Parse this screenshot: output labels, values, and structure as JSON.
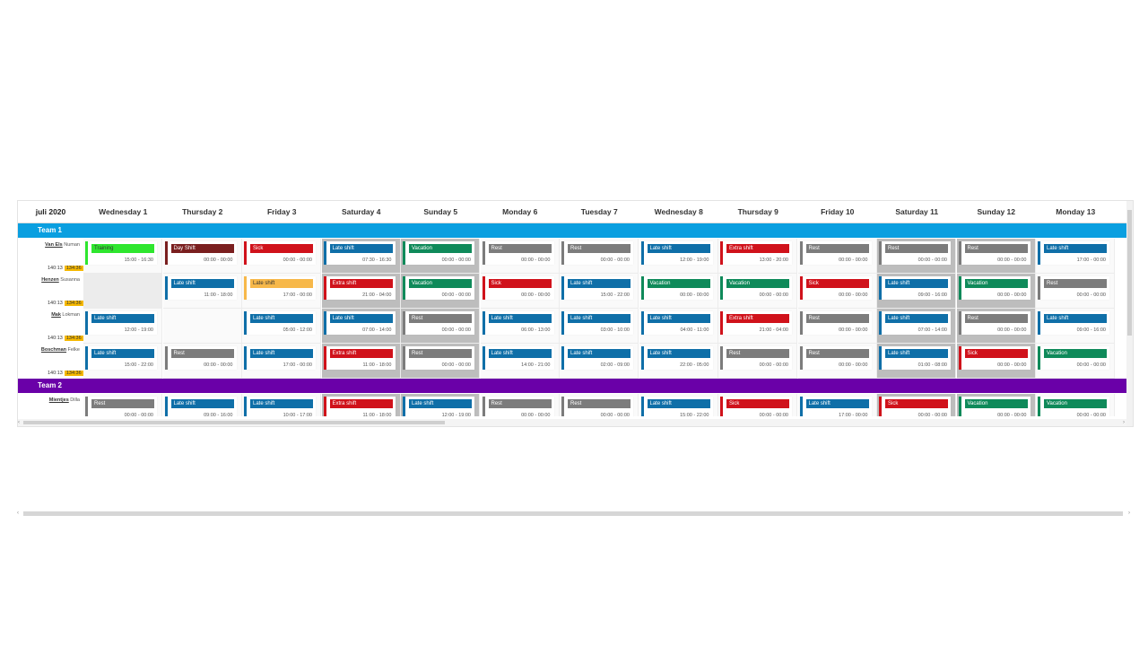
{
  "scheduler": {
    "month_label": "juli 2020",
    "days": [
      "Wednesday 1",
      "Thursday 2",
      "Friday 3",
      "Saturday 4",
      "Sunday 5",
      "Monday 6",
      "Tuesday 7",
      "Wednesday 8",
      "Thursday 9",
      "Friday 10",
      "Saturday 11",
      "Sunday 12",
      "Monday 13"
    ],
    "weekend_columns": [
      3,
      4,
      10,
      11
    ],
    "colors": {
      "training": "#2ee62e",
      "day_shift": "#7a1f1f",
      "sick": "#d0121b",
      "late_shift": "#0f6fa8",
      "vacation": "#0f8a5a",
      "rest": "#7c7c7c",
      "extra_shift": "#d0121b",
      "late_shift_orange": "#f7b84a",
      "team1": "#0a9fe0",
      "team2": "#6a00a8"
    }
  },
  "teams": [
    {
      "name": "Team 1",
      "members": [
        {
          "last_name": "Van Els",
          "first_name": "Numan",
          "planned": "140:13",
          "actual": "134:36",
          "events": [
            {
              "label": "Training",
              "time": "15:00 - 16:30",
              "color": "training"
            },
            {
              "label": "Day Shift",
              "time": "00:00 - 00:00",
              "color": "day_shift"
            },
            {
              "label": "Sick",
              "time": "00:00 - 00:00",
              "color": "sick"
            },
            {
              "label": "Late shift",
              "time": "07:30 - 16:30",
              "color": "late_shift"
            },
            {
              "label": "Vacation",
              "time": "00:00 - 00:00",
              "color": "vacation"
            },
            {
              "label": "Rest",
              "time": "00:00 - 00:00",
              "color": "rest"
            },
            {
              "label": "Rest",
              "time": "00:00 - 00:00",
              "color": "rest"
            },
            {
              "label": "Late shift",
              "time": "12:00 - 19:00",
              "color": "late_shift"
            },
            {
              "label": "Extra shift",
              "time": "13:00 - 20:00",
              "color": "extra_shift"
            },
            {
              "label": "Rest",
              "time": "00:00 - 00:00",
              "color": "rest"
            },
            {
              "label": "Rest",
              "time": "00:00 - 00:00",
              "color": "rest"
            },
            {
              "label": "Rest",
              "time": "00:00 - 00:00",
              "color": "rest"
            },
            {
              "label": "Late shift",
              "time": "17:00 - 00:00",
              "color": "late_shift"
            }
          ]
        },
        {
          "last_name": "Henzen",
          "first_name": "Susanna",
          "planned": "140:13",
          "actual": "134:36",
          "events": [
            null,
            {
              "label": "Late shift",
              "time": "11:00 - 18:00",
              "color": "late_shift"
            },
            {
              "label": "Late shift",
              "time": "17:00 - 00:00",
              "color": "late_shift_orange"
            },
            {
              "label": "Extra shift",
              "time": "21:00 - 04:00",
              "color": "extra_shift"
            },
            {
              "label": "Vacation",
              "time": "00:00 - 00:00",
              "color": "vacation"
            },
            {
              "label": "Sick",
              "time": "00:00 - 00:00",
              "color": "sick"
            },
            {
              "label": "Late shift",
              "time": "15:00 - 22:00",
              "color": "late_shift"
            },
            {
              "label": "Vacation",
              "time": "00:00 - 00:00",
              "color": "vacation"
            },
            {
              "label": "Vacation",
              "time": "00:00 - 00:00",
              "color": "vacation"
            },
            {
              "label": "Sick",
              "time": "00:00 - 00:00",
              "color": "sick"
            },
            {
              "label": "Late shift",
              "time": "09:00 - 16:00",
              "color": "late_shift"
            },
            {
              "label": "Vacation",
              "time": "00:00 - 00:00",
              "color": "vacation"
            },
            {
              "label": "Rest",
              "time": "00:00 - 00:00",
              "color": "rest"
            }
          ]
        },
        {
          "last_name": "Mak",
          "first_name": "Lokman",
          "planned": "140:13",
          "actual": "134:36",
          "events": [
            {
              "label": "Late shift",
              "time": "12:00 - 19:00",
              "color": "late_shift"
            },
            null,
            {
              "label": "Late shift",
              "time": "05:00 - 12:00",
              "color": "late_shift"
            },
            {
              "label": "Late shift",
              "time": "07:00 - 14:00",
              "color": "late_shift"
            },
            {
              "label": "Rest",
              "time": "00:00 - 00:00",
              "color": "rest"
            },
            {
              "label": "Late shift",
              "time": "06:00 - 13:00",
              "color": "late_shift"
            },
            {
              "label": "Late shift",
              "time": "03:00 - 10:00",
              "color": "late_shift"
            },
            {
              "label": "Late shift",
              "time": "04:00 - 11:00",
              "color": "late_shift"
            },
            {
              "label": "Extra shift",
              "time": "21:00 - 04:00",
              "color": "extra_shift"
            },
            {
              "label": "Rest",
              "time": "00:00 - 00:00",
              "color": "rest"
            },
            {
              "label": "Late shift",
              "time": "07:00 - 14:00",
              "color": "late_shift"
            },
            {
              "label": "Rest",
              "time": "00:00 - 00:00",
              "color": "rest"
            },
            {
              "label": "Late shift",
              "time": "09:00 - 16:00",
              "color": "late_shift"
            }
          ]
        },
        {
          "last_name": "Boschman",
          "first_name": "Felke",
          "planned": "140:13",
          "actual": "134:36",
          "events": [
            {
              "label": "Late shift",
              "time": "15:00 - 22:00",
              "color": "late_shift"
            },
            {
              "label": "Rest",
              "time": "00:00 - 00:00",
              "color": "rest"
            },
            {
              "label": "Late shift",
              "time": "17:00 - 00:00",
              "color": "late_shift"
            },
            {
              "label": "Extra shift",
              "time": "11:00 - 18:00",
              "color": "extra_shift"
            },
            {
              "label": "Rest",
              "time": "00:00 - 00:00",
              "color": "rest"
            },
            {
              "label": "Late shift",
              "time": "14:00 - 21:00",
              "color": "late_shift"
            },
            {
              "label": "Late shift",
              "time": "02:00 - 09:00",
              "color": "late_shift"
            },
            {
              "label": "Late shift",
              "time": "22:00 - 05:00",
              "color": "late_shift"
            },
            {
              "label": "Rest",
              "time": "00:00 - 00:00",
              "color": "rest"
            },
            {
              "label": "Rest",
              "time": "00:00 - 00:00",
              "color": "rest"
            },
            {
              "label": "Late shift",
              "time": "01:00 - 08:00",
              "color": "late_shift"
            },
            {
              "label": "Sick",
              "time": "00:00 - 00:00",
              "color": "sick"
            },
            {
              "label": "Vacation",
              "time": "00:00 - 00:00",
              "color": "vacation"
            }
          ]
        }
      ]
    },
    {
      "name": "Team 2",
      "members": [
        {
          "last_name": "Mientjes",
          "first_name": "Dilla",
          "planned": "",
          "actual": "",
          "events": [
            {
              "label": "Rest",
              "time": "00:00 - 00:00",
              "color": "rest"
            },
            {
              "label": "Late shift",
              "time": "09:00 - 16:00",
              "color": "late_shift"
            },
            {
              "label": "Late shift",
              "time": "10:00 - 17:00",
              "color": "late_shift"
            },
            {
              "label": "Extra shift",
              "time": "11:00 - 18:00",
              "color": "extra_shift"
            },
            {
              "label": "Late shift",
              "time": "12:00 - 19:00",
              "color": "late_shift"
            },
            {
              "label": "Rest",
              "time": "00:00 - 00:00",
              "color": "rest"
            },
            {
              "label": "Rest",
              "time": "00:00 - 00:00",
              "color": "rest"
            },
            {
              "label": "Late shift",
              "time": "15:00 - 22:00",
              "color": "late_shift"
            },
            {
              "label": "Sick",
              "time": "00:00 - 00:00",
              "color": "sick"
            },
            {
              "label": "Late shift",
              "time": "17:00 - 00:00",
              "color": "late_shift"
            },
            {
              "label": "Sick",
              "time": "00:00 - 00:00",
              "color": "sick"
            },
            {
              "label": "Vacation",
              "time": "00:00 - 00:00",
              "color": "vacation"
            },
            {
              "label": "Vacation",
              "time": "00:00 - 00:00",
              "color": "vacation"
            }
          ]
        }
      ]
    }
  ]
}
